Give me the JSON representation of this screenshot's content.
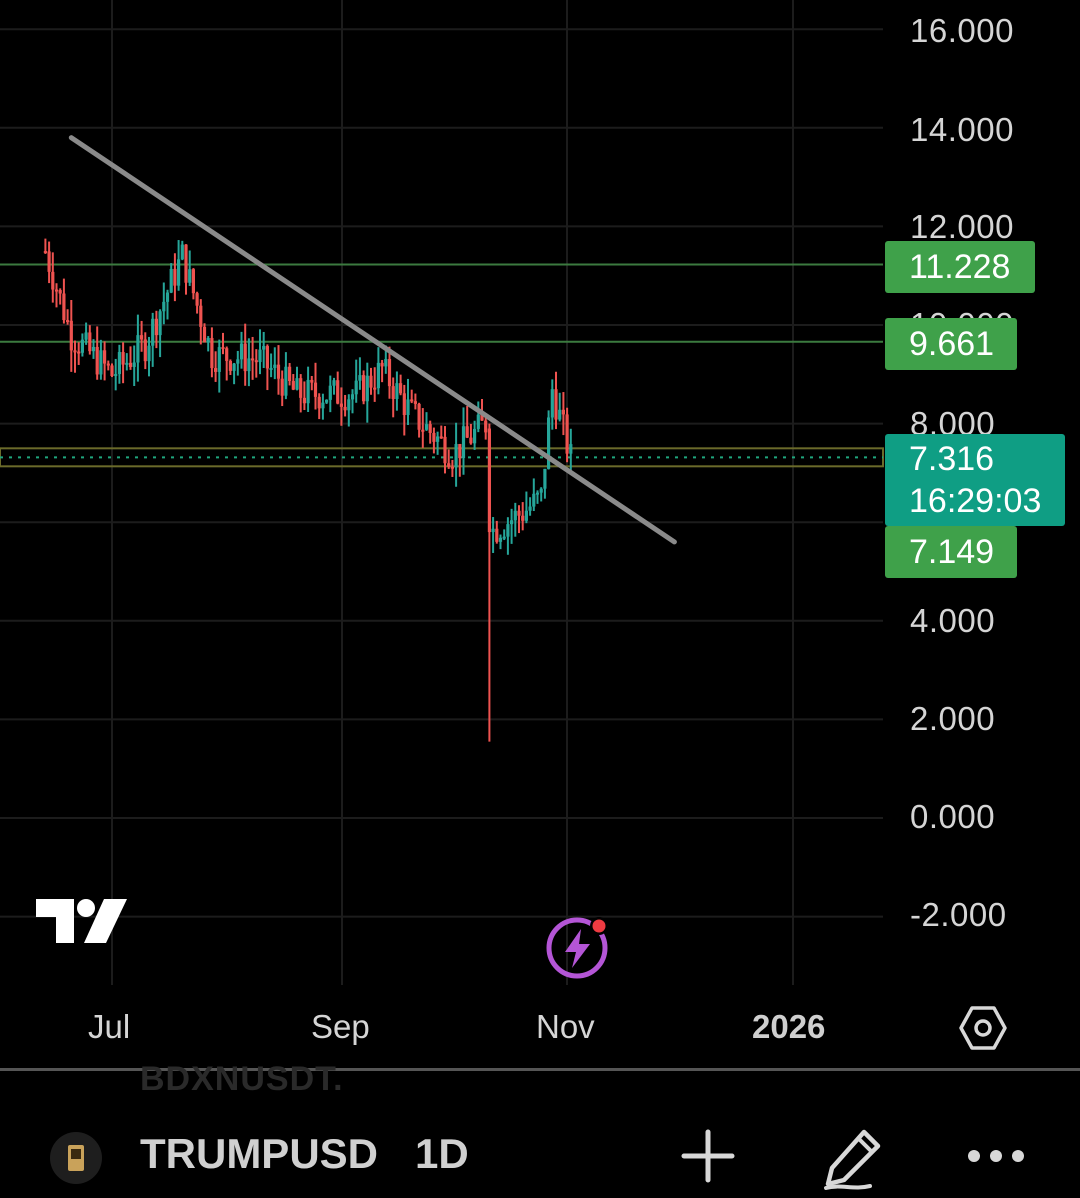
{
  "chart_data": {
    "type": "candlestick",
    "y_ticks": [
      "16.000",
      "14.000",
      "12.000",
      "10.000",
      "8.000",
      "4.000",
      "2.000",
      "0.000",
      "-2.000"
    ],
    "x_ticks": [
      "Jul",
      "Sep",
      "Nov",
      "2026"
    ],
    "ylim": [
      -3.5,
      17
    ],
    "price_levels": [
      {
        "label": "11.228",
        "value": 11.228,
        "color": "#3fa14a"
      },
      {
        "label": "9.661",
        "value": 9.661,
        "color": "#3fa14a"
      },
      {
        "label": "7.149",
        "value": 7.149,
        "color": "#3fa14a"
      }
    ],
    "current_price": {
      "value": "7.316",
      "countdown": "16:29:03",
      "color": "#0f9e84"
    },
    "trendline": {
      "from": {
        "date": "Jun 20",
        "price": 13.8
      },
      "to": {
        "date": "Nov 30",
        "price": 5.6
      }
    },
    "summary_series": [
      {
        "date": "Jun 13",
        "close": 11.5
      },
      {
        "date": "Jun 20",
        "close": 9.8
      },
      {
        "date": "Jul 1",
        "close": 9.0
      },
      {
        "date": "Jul 10",
        "close": 9.6
      },
      {
        "date": "Jul 20",
        "close": 11.4
      },
      {
        "date": "Jul 28",
        "close": 9.4
      },
      {
        "date": "Aug 10",
        "close": 9.3
      },
      {
        "date": "Aug 20",
        "close": 8.6
      },
      {
        "date": "Sep 5",
        "close": 8.6
      },
      {
        "date": "Sep 12",
        "close": 9.1
      },
      {
        "date": "Sep 20",
        "close": 8.2
      },
      {
        "date": "Oct 1",
        "close": 7.4
      },
      {
        "date": "Oct 10",
        "close": 8.0
      },
      {
        "date": "Oct 11",
        "low": 1.55,
        "close": 5.8
      },
      {
        "date": "Oct 20",
        "close": 6.2
      },
      {
        "date": "Oct 25",
        "close": 6.5
      },
      {
        "date": "Oct 28",
        "close": 8.7
      },
      {
        "date": "Nov 2",
        "close": 7.3
      }
    ]
  },
  "colors": {
    "up": "#26a69a",
    "down": "#ef5350",
    "grid": "#1c1c1c",
    "trend": "#8a8a8a"
  },
  "footer": {
    "symbol": "TRUMPUSD",
    "interval": "1D",
    "ghost_text": "BDXNUSDT.",
    "icons": [
      "avatar-icon",
      "plus-icon",
      "pencil-icon",
      "more-icon"
    ]
  },
  "overlay": {
    "icons": [
      "tradingview-logo",
      "flash-icon",
      "settings-icon"
    ]
  }
}
